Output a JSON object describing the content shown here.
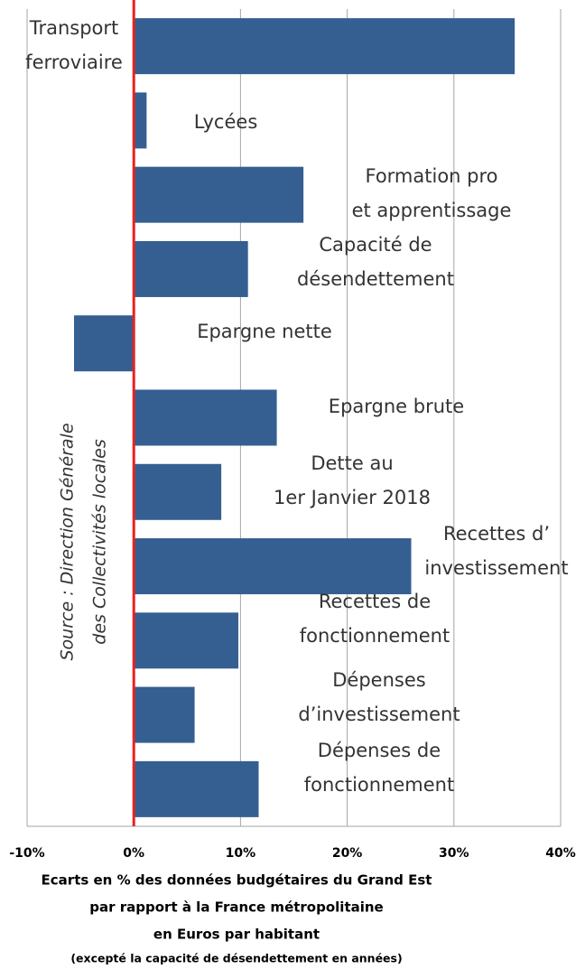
{
  "chart_data": {
    "type": "hbar",
    "categories": [
      [
        "Transport",
        "ferroviaire"
      ],
      [
        "Lycées"
      ],
      [
        "Formation pro",
        "et apprentissage"
      ],
      [
        "Capacité de",
        "désendettement"
      ],
      [
        "Epargne nette"
      ],
      [
        "Epargne brute"
      ],
      [
        "Dette au",
        "1er Janvier 2018"
      ],
      [
        "Recettes d’",
        "investissement"
      ],
      [
        "Recettes de",
        "fonctionnement"
      ],
      [
        "Dépenses",
        "d’investissement"
      ],
      [
        "Dépenses de",
        "fonctionnement"
      ]
    ],
    "values": [
      35.7,
      1.2,
      15.9,
      10.7,
      -5.6,
      13.4,
      8.2,
      26.0,
      9.8,
      5.7,
      11.7
    ],
    "color": "#355f91",
    "zero_line_color": "#e8231f",
    "xlim": [
      -10,
      40
    ],
    "xticks": [
      {
        "value": -10,
        "label": "-10%"
      },
      {
        "value": 0,
        "label": "0%"
      },
      {
        "value": 10,
        "label": "10%"
      },
      {
        "value": 20,
        "label": "20%"
      },
      {
        "value": 30,
        "label": "30%"
      },
      {
        "value": 40,
        "label": "40%"
      }
    ],
    "grid": true,
    "xlabel": [
      "Ecarts en % des données budgétaires du Grand Est",
      "par rapport à la France métropolitaine",
      "en Euros par habitant"
    ],
    "note": "(excepté la capacité de désendettement en années)",
    "source": [
      "Source : Direction Générale",
      "des Collectivités locales"
    ]
  }
}
